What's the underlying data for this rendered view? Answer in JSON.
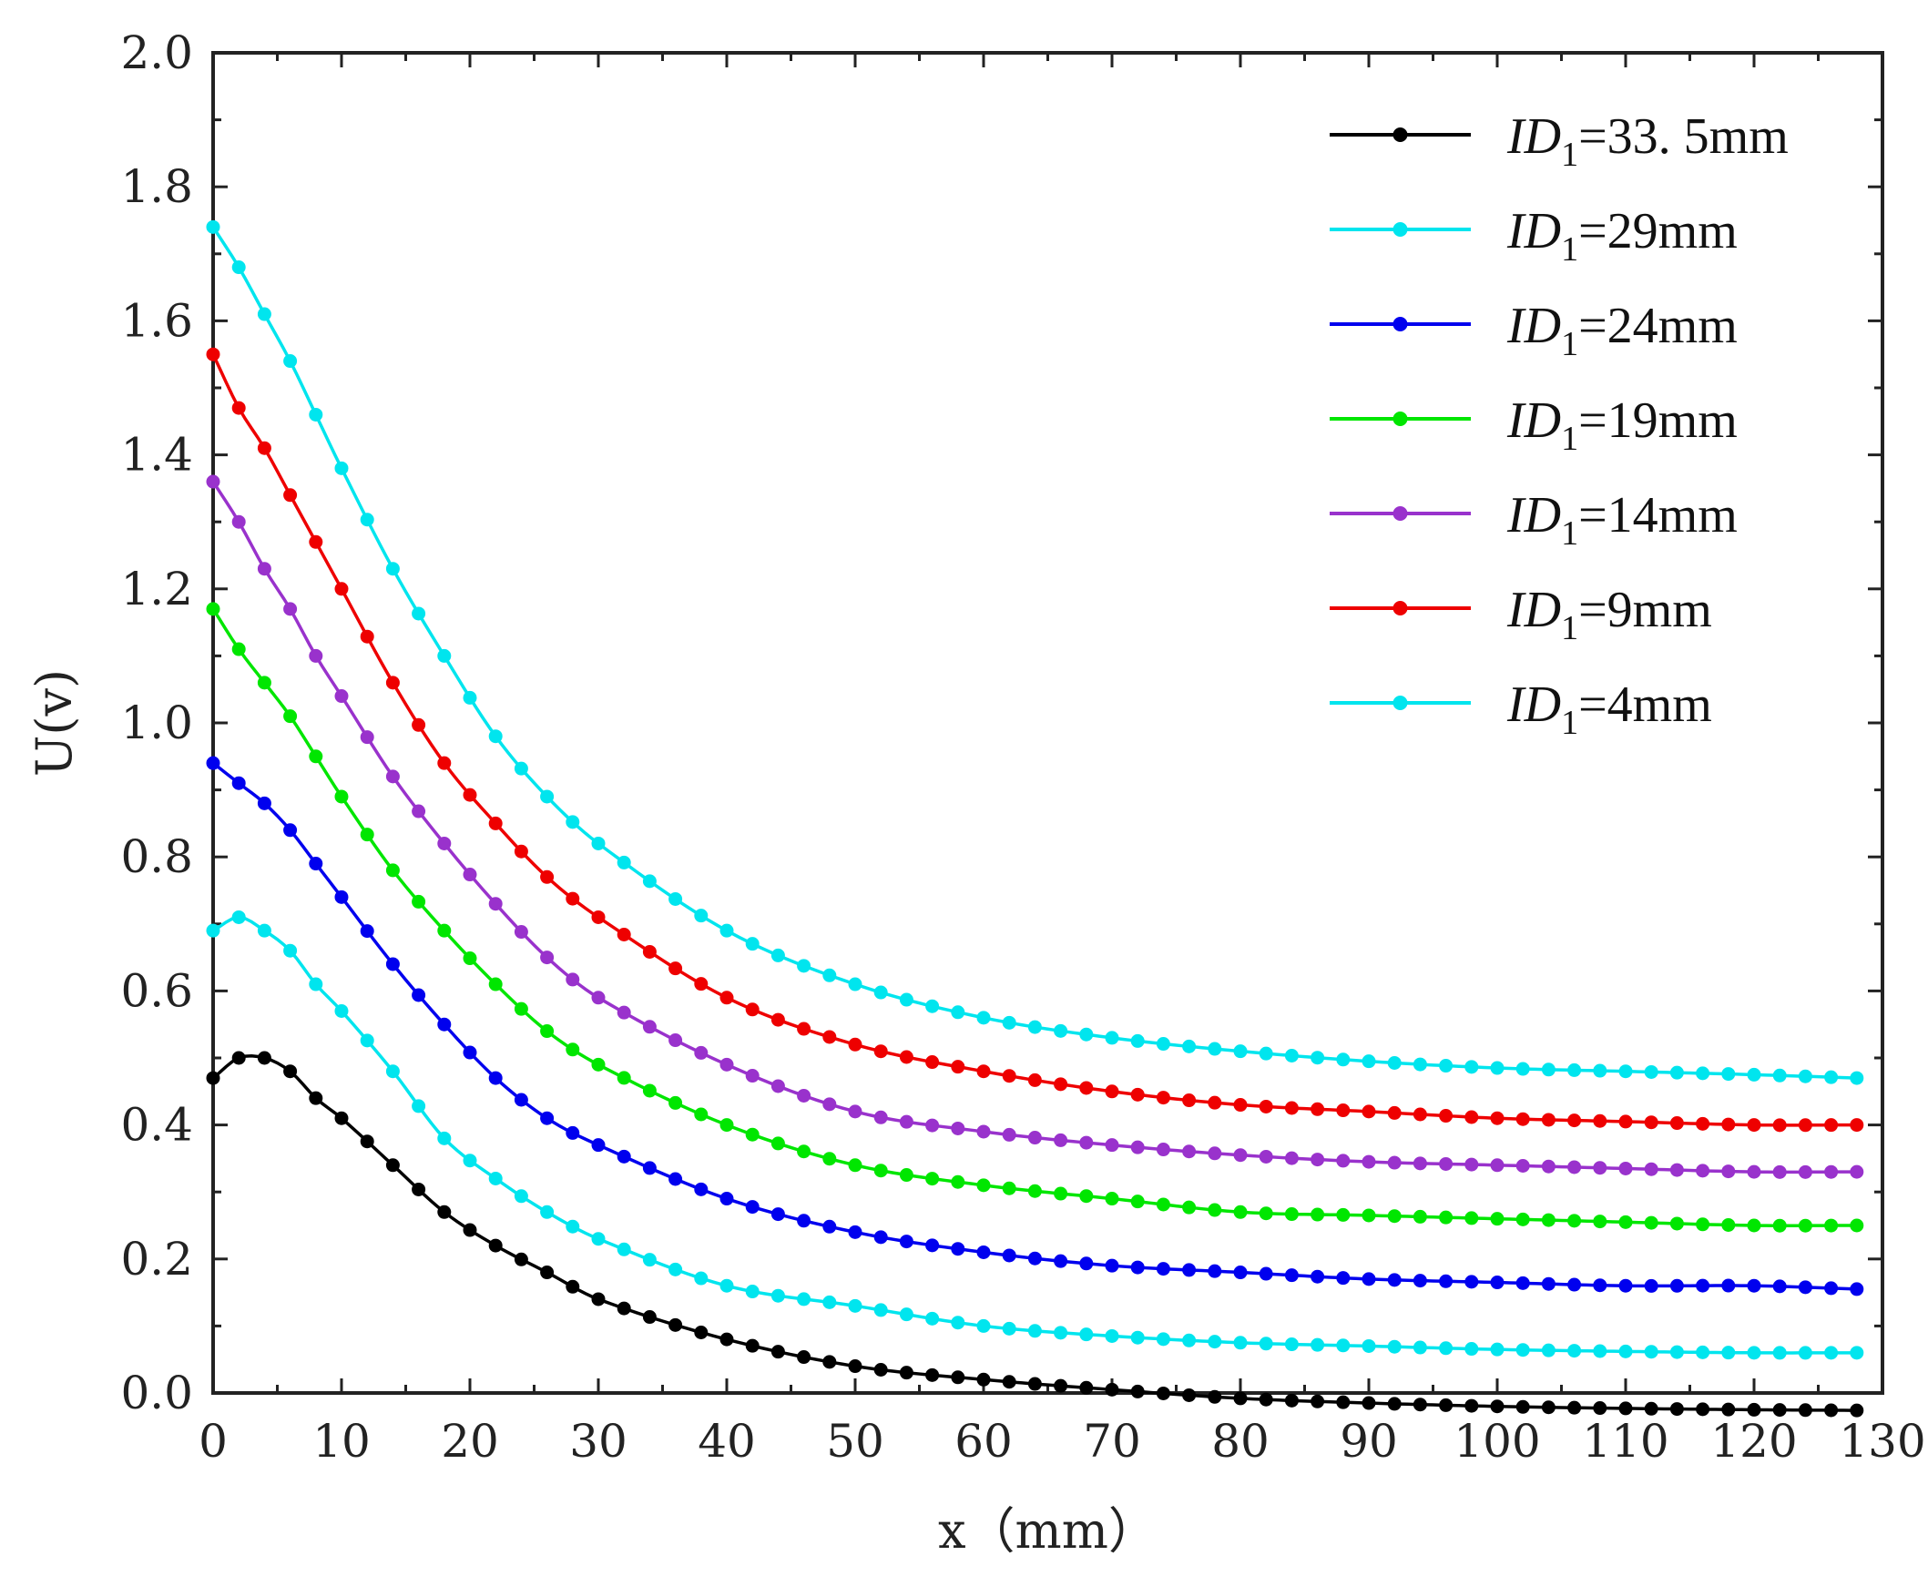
{
  "chart_data": {
    "type": "line",
    "title": "",
    "xlabel": "x（mm）",
    "ylabel": "U(v)",
    "xlim": [
      0,
      130
    ],
    "ylim": [
      0.0,
      2.0
    ],
    "x_ticks": [
      0,
      10,
      20,
      30,
      40,
      50,
      60,
      70,
      80,
      90,
      100,
      110,
      120,
      130
    ],
    "x_tick_labels": [
      "0",
      "10",
      "20",
      "30",
      "40",
      "50",
      "60",
      "70",
      "80",
      "90",
      "100",
      "110",
      "120",
      "130"
    ],
    "y_ticks": [
      0.0,
      0.2,
      0.4,
      0.6,
      0.8,
      1.0,
      1.2,
      1.4,
      1.6,
      1.8,
      2.0
    ],
    "y_tick_labels": [
      "0.0",
      "0.2",
      "0.4",
      "0.6",
      "0.8",
      "1.0",
      "1.2",
      "1.4",
      "1.6",
      "1.8",
      "2.0"
    ],
    "grid": false,
    "legend_position": "top-right",
    "x": [
      0,
      2,
      4,
      6,
      8,
      10,
      14,
      18,
      22,
      26,
      30,
      40,
      50,
      60,
      70,
      80,
      90,
      100,
      110,
      120,
      128
    ],
    "series": [
      {
        "name": "ID1=33.5mm",
        "legend_prefix": "ID",
        "legend_sub": "1",
        "legend_suffix": "=33. 5mm",
        "color": "#000000",
        "values": [
          0.47,
          0.5,
          0.5,
          0.48,
          0.44,
          0.41,
          0.34,
          0.27,
          0.22,
          0.18,
          0.14,
          0.08,
          0.04,
          0.02,
          0.005,
          -0.008,
          -0.015,
          -0.02,
          -0.023,
          -0.025,
          -0.026
        ]
      },
      {
        "name": "ID1=29mm",
        "legend_prefix": "ID",
        "legend_sub": "1",
        "legend_suffix": "=29mm",
        "color": "#00e5ee",
        "values": [
          0.69,
          0.71,
          0.69,
          0.66,
          0.61,
          0.57,
          0.48,
          0.38,
          0.32,
          0.27,
          0.23,
          0.16,
          0.13,
          0.1,
          0.085,
          0.075,
          0.07,
          0.065,
          0.062,
          0.06,
          0.06
        ]
      },
      {
        "name": "ID1=24mm",
        "legend_prefix": "ID",
        "legend_sub": "1",
        "legend_suffix": "=24mm",
        "color": "#0000ee",
        "values": [
          0.94,
          0.91,
          0.88,
          0.84,
          0.79,
          0.74,
          0.64,
          0.55,
          0.47,
          0.41,
          0.37,
          0.29,
          0.24,
          0.21,
          0.19,
          0.18,
          0.17,
          0.165,
          0.16,
          0.16,
          0.155
        ]
      },
      {
        "name": "ID1=19mm",
        "legend_prefix": "ID",
        "legend_sub": "1",
        "legend_suffix": "=19mm",
        "color": "#00e600",
        "values": [
          1.17,
          1.11,
          1.06,
          1.01,
          0.95,
          0.89,
          0.78,
          0.69,
          0.61,
          0.54,
          0.49,
          0.4,
          0.34,
          0.31,
          0.29,
          0.27,
          0.265,
          0.26,
          0.255,
          0.25,
          0.25
        ]
      },
      {
        "name": "ID1=14mm",
        "legend_prefix": "ID",
        "legend_sub": "1",
        "legend_suffix": "=14mm",
        "color": "#9932cc",
        "values": [
          1.36,
          1.3,
          1.23,
          1.17,
          1.1,
          1.04,
          0.92,
          0.82,
          0.73,
          0.65,
          0.59,
          0.49,
          0.42,
          0.39,
          0.37,
          0.355,
          0.345,
          0.34,
          0.335,
          0.33,
          0.33
        ]
      },
      {
        "name": "ID1=9mm",
        "legend_prefix": "ID",
        "legend_sub": "1",
        "legend_suffix": "=9mm",
        "color": "#ee0000",
        "values": [
          1.55,
          1.47,
          1.41,
          1.34,
          1.27,
          1.2,
          1.06,
          0.94,
          0.85,
          0.77,
          0.71,
          0.59,
          0.52,
          0.48,
          0.45,
          0.43,
          0.42,
          0.41,
          0.405,
          0.4,
          0.4
        ]
      },
      {
        "name": "ID1=4mm",
        "legend_prefix": "ID",
        "legend_sub": "1",
        "legend_suffix": "=4mm",
        "color": "#00e5ee",
        "values": [
          1.74,
          1.68,
          1.61,
          1.54,
          1.46,
          1.38,
          1.23,
          1.1,
          0.98,
          0.89,
          0.82,
          0.69,
          0.61,
          0.56,
          0.53,
          0.51,
          0.495,
          0.485,
          0.48,
          0.475,
          0.47
        ]
      }
    ]
  }
}
